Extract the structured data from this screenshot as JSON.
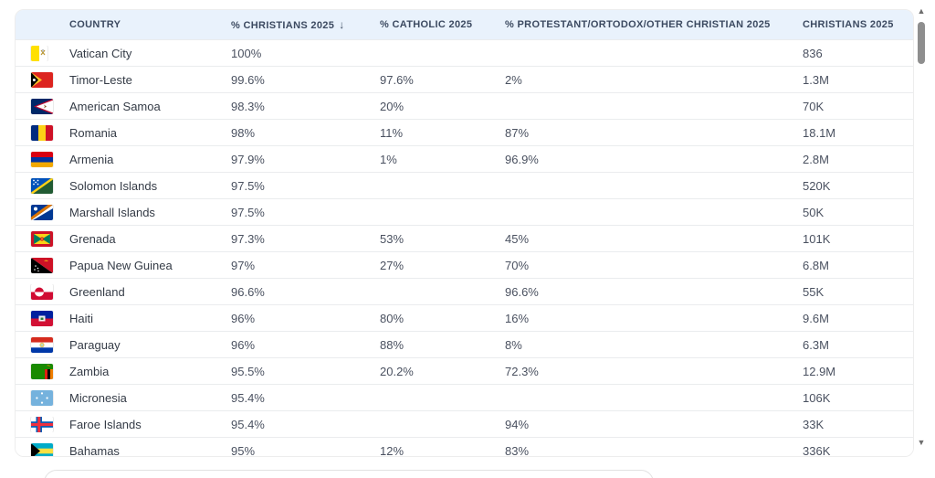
{
  "table": {
    "sort_icon": "↓",
    "columns": [
      {
        "label": "COUNTRY"
      },
      {
        "label": "% CHRISTIANS 2025",
        "sorted": "desc"
      },
      {
        "label": "% CATHOLIC 2025"
      },
      {
        "label": "% PROTESTANT/ORTODOX/OTHER CHRISTIAN 2025"
      },
      {
        "label": "CHRISTIANS 2025"
      }
    ],
    "rows": [
      {
        "flag": "vatican-city",
        "country": "Vatican City",
        "pct_christians": "100%",
        "pct_catholic": "",
        "pct_protestant": "",
        "christians": "836"
      },
      {
        "flag": "timor-leste",
        "country": "Timor-Leste",
        "pct_christians": "99.6%",
        "pct_catholic": "97.6%",
        "pct_protestant": "2%",
        "christians": "1.3M"
      },
      {
        "flag": "american-samoa",
        "country": "American Samoa",
        "pct_christians": "98.3%",
        "pct_catholic": "20%",
        "pct_protestant": "",
        "christians": "70K"
      },
      {
        "flag": "romania",
        "country": "Romania",
        "pct_christians": "98%",
        "pct_catholic": "11%",
        "pct_protestant": "87%",
        "christians": "18.1M"
      },
      {
        "flag": "armenia",
        "country": "Armenia",
        "pct_christians": "97.9%",
        "pct_catholic": "1%",
        "pct_protestant": "96.9%",
        "christians": "2.8M"
      },
      {
        "flag": "solomon-islands",
        "country": "Solomon Islands",
        "pct_christians": "97.5%",
        "pct_catholic": "",
        "pct_protestant": "",
        "christians": "520K"
      },
      {
        "flag": "marshall-islands",
        "country": "Marshall Islands",
        "pct_christians": "97.5%",
        "pct_catholic": "",
        "pct_protestant": "",
        "christians": "50K"
      },
      {
        "flag": "grenada",
        "country": "Grenada",
        "pct_christians": "97.3%",
        "pct_catholic": "53%",
        "pct_protestant": "45%",
        "christians": "101K"
      },
      {
        "flag": "papua-new-guinea",
        "country": "Papua New Guinea",
        "pct_christians": "97%",
        "pct_catholic": "27%",
        "pct_protestant": "70%",
        "christians": "6.8M"
      },
      {
        "flag": "greenland",
        "country": "Greenland",
        "pct_christians": "96.6%",
        "pct_catholic": "",
        "pct_protestant": "96.6%",
        "christians": "55K"
      },
      {
        "flag": "haiti",
        "country": "Haiti",
        "pct_christians": "96%",
        "pct_catholic": "80%",
        "pct_protestant": "16%",
        "christians": "9.6M"
      },
      {
        "flag": "paraguay",
        "country": "Paraguay",
        "pct_christians": "96%",
        "pct_catholic": "88%",
        "pct_protestant": "8%",
        "christians": "6.3M"
      },
      {
        "flag": "zambia",
        "country": "Zambia",
        "pct_christians": "95.5%",
        "pct_catholic": "20.2%",
        "pct_protestant": "72.3%",
        "christians": "12.9M"
      },
      {
        "flag": "micronesia",
        "country": "Micronesia",
        "pct_christians": "95.4%",
        "pct_catholic": "",
        "pct_protestant": "",
        "christians": "106K"
      },
      {
        "flag": "faroe-islands",
        "country": "Faroe Islands",
        "pct_christians": "95.4%",
        "pct_catholic": "",
        "pct_protestant": "94%",
        "christians": "33K"
      },
      {
        "flag": "bahamas",
        "country": "Bahamas",
        "pct_christians": "95%",
        "pct_catholic": "12%",
        "pct_protestant": "83%",
        "christians": "336K"
      }
    ]
  },
  "scrollbar": {
    "up_icon": "▲",
    "down_icon": "▼"
  },
  "colors": {
    "header_bg": "#e9f2fc",
    "header_text": "#3c4a61",
    "row_text": "#4a5160",
    "row_border": "#eaecee",
    "card_border": "#ededed",
    "scroll_thumb": "#8e8e8e"
  }
}
